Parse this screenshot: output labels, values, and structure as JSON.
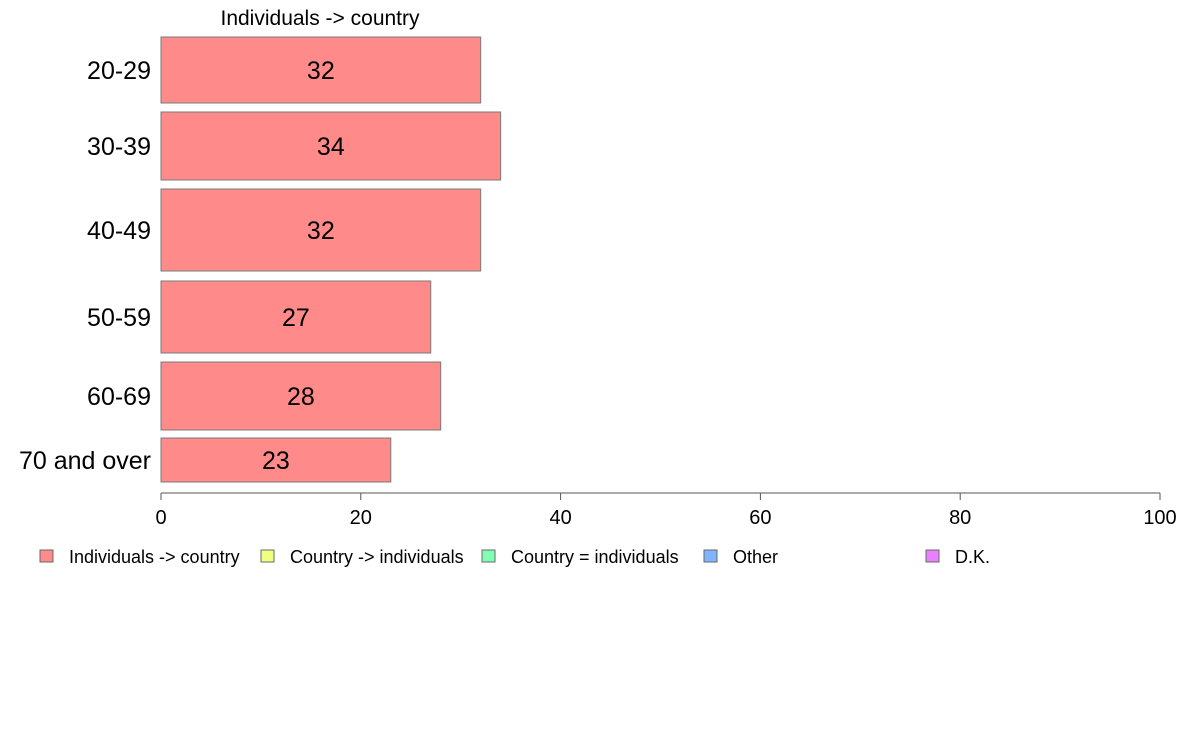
{
  "chart_data": {
    "type": "bar",
    "orientation": "horizontal",
    "title": "Individuals -> country",
    "categories": [
      "20-29",
      "30-39",
      "40-49",
      "50-59",
      "60-69",
      "70 and over"
    ],
    "series": [
      {
        "name": "Individuals -> country",
        "color": "#ff8a8a",
        "values": [
          32,
          34,
          32,
          27,
          28,
          23
        ]
      }
    ],
    "value_labels": [
      "32",
      "34",
      "32",
      "27",
      "28",
      "23"
    ],
    "xlim": [
      0,
      100
    ],
    "xticks": [
      0,
      20,
      40,
      60,
      80,
      100
    ],
    "xtick_labels": [
      "0",
      "20",
      "40",
      "60",
      "80",
      "100"
    ],
    "grid": false,
    "legend_position": "bottom",
    "legend": [
      {
        "name": "Individuals -> country",
        "color": "#ff8a8a"
      },
      {
        "name": "Country -> individuals",
        "color": "#f0ff80"
      },
      {
        "name": "Country = individuals",
        "color": "#80ffb4"
      },
      {
        "name": "Other",
        "color": "#80b4ff"
      },
      {
        "name": "D.K.",
        "color": "#ea80ff"
      }
    ]
  }
}
